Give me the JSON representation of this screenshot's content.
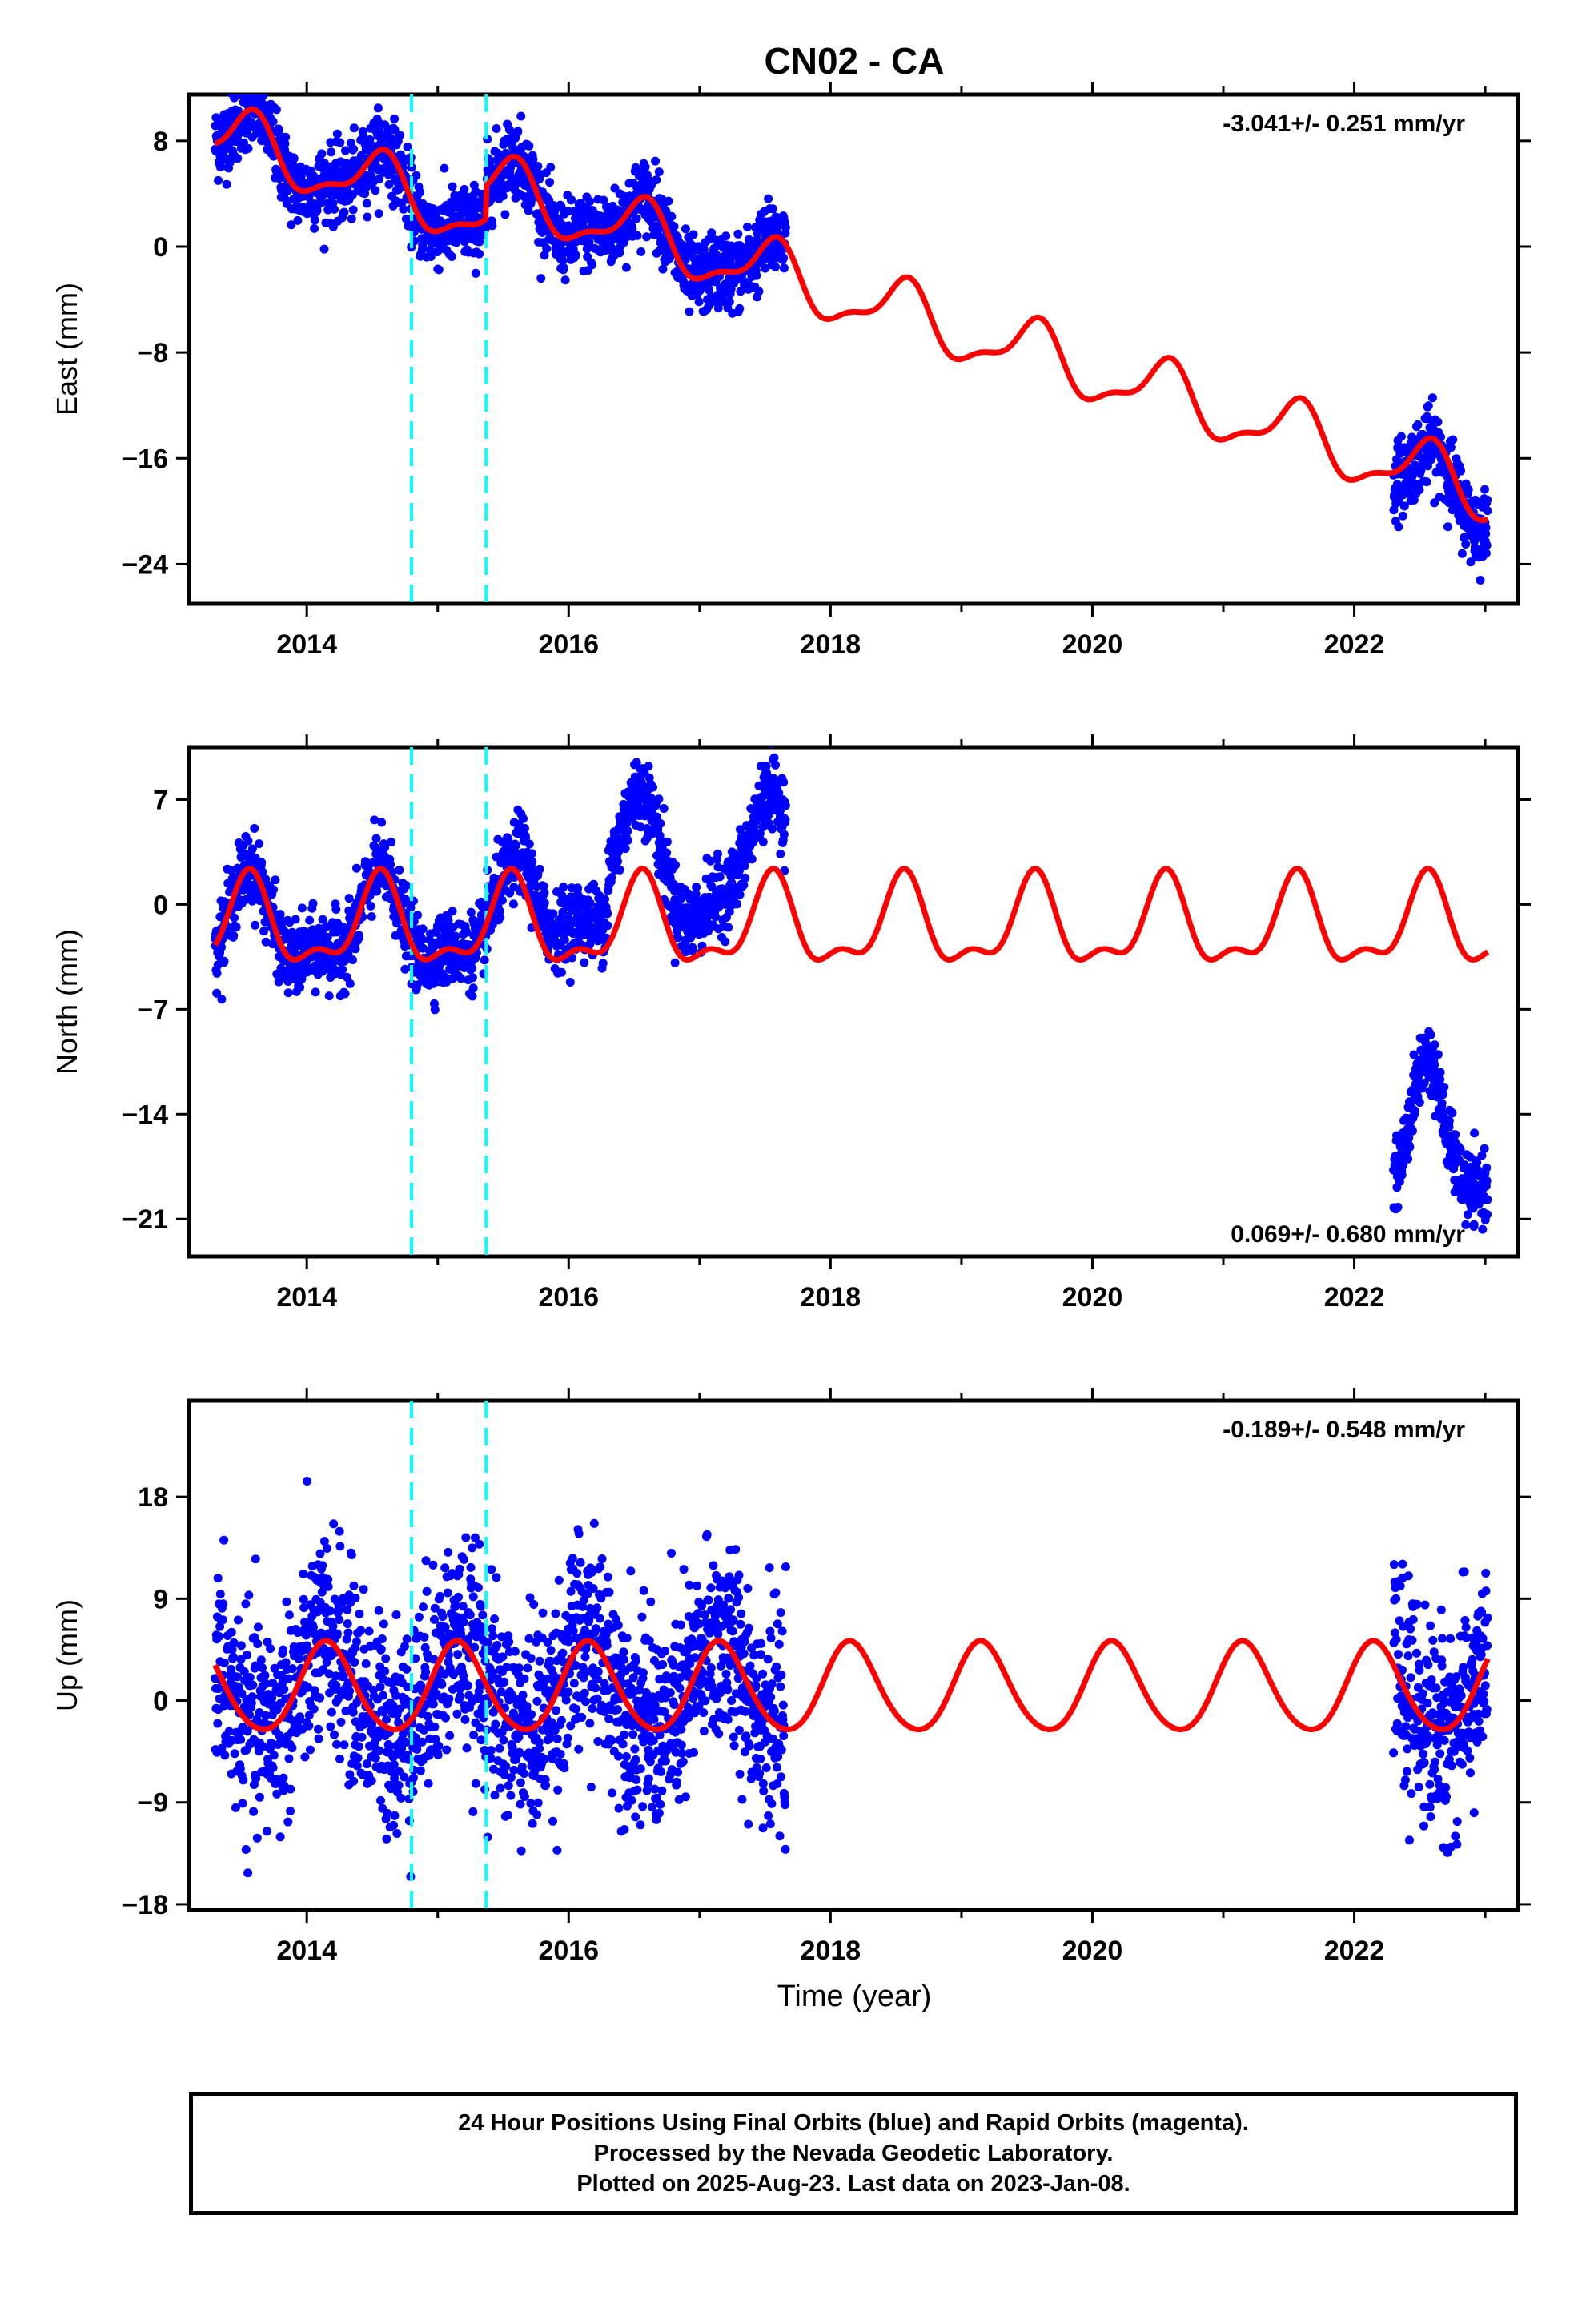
{
  "title": "CN02 - CA",
  "xlabel": "Time (year)",
  "caption": {
    "line1": "24 Hour Positions Using Final Orbits (blue) and Rapid Orbits (magenta).",
    "line2": "Processed by the Nevada Geodetic Laboratory.",
    "line3": "Plotted on 2025-Aug-23. Last data on 2023-Jan-08."
  },
  "colors": {
    "data": "#0000ff",
    "model": "#ff0000",
    "equipment_change": "#00ffff",
    "frame": "#000000"
  },
  "chart_data": [
    {
      "type": "scatter",
      "ylabel": "East (mm)",
      "rate_text": "-3.041+/- 0.251 mm/yr",
      "rate_position": "top-right",
      "xlim": [
        2013.1,
        2023.25
      ],
      "ylim": [
        -27,
        11.5
      ],
      "xticks": [
        2014,
        2016,
        2018,
        2020,
        2022
      ],
      "yticks": [
        8,
        0,
        -8,
        -16,
        -24
      ],
      "ytick_labels": [
        "8",
        "0",
        "−8",
        "−16",
        "−24"
      ],
      "equipment_changes": [
        2014.8,
        2015.37
      ],
      "model": {
        "intercept_2013": 9.3,
        "rate": -3.041,
        "annual": 2.2,
        "annual_phase_year": 0.5,
        "semiannual": 0.8,
        "steps": [
          {
            "year": 2015.37,
            "offset": 2.5
          }
        ]
      },
      "data_segments": [
        {
          "start": 2013.3,
          "end": 2017.66,
          "scatter": 1.4
        },
        {
          "start": 2022.3,
          "end": 2023.02,
          "scatter": 1.4
        }
      ]
    },
    {
      "type": "scatter",
      "ylabel": "North (mm)",
      "rate_text": "0.069+/- 0.680 mm/yr",
      "rate_position": "bottom-right",
      "xlim": [
        2013.1,
        2023.25
      ],
      "ylim": [
        -23.5,
        10.5
      ],
      "xticks": [
        2014,
        2016,
        2018,
        2020,
        2022
      ],
      "yticks": [
        7,
        0,
        -7,
        -14,
        -21
      ],
      "ytick_labels": [
        "7",
        "0",
        "−7",
        "−14",
        "−21"
      ],
      "equipment_changes": [
        2014.8,
        2015.37
      ],
      "model": {
        "offset": -1.5,
        "annual": 2.7,
        "semiannual": 1.2
      },
      "data_segments": [
        {
          "start": 2013.3,
          "end": 2017.66,
          "scatter": 1.2
        },
        {
          "start": 2022.3,
          "end": 2023.02,
          "scatter": 1.1
        }
      ]
    },
    {
      "type": "scatter",
      "ylabel": "Up (mm)",
      "rate_text": "-0.189+/- 0.548 mm/yr",
      "rate_position": "top-right",
      "xlim": [
        2013.1,
        2023.25
      ],
      "ylim": [
        -18.5,
        26.5
      ],
      "xticks": [
        2014,
        2016,
        2018,
        2020,
        2022
      ],
      "yticks": [
        18,
        9,
        0,
        -9,
        -18
      ],
      "ytick_labels": [
        "18",
        "9",
        "0",
        "−9",
        "−18"
      ],
      "equipment_changes": [
        2014.8,
        2015.37
      ],
      "model": {
        "offset": 1.0,
        "annual": 3.9,
        "semiannual": 0.4
      },
      "data_segments": [
        {
          "start": 2013.3,
          "end": 2017.66,
          "scatter": 4.5
        },
        {
          "start": 2022.3,
          "end": 2023.02,
          "scatter": 4.5
        }
      ]
    }
  ]
}
